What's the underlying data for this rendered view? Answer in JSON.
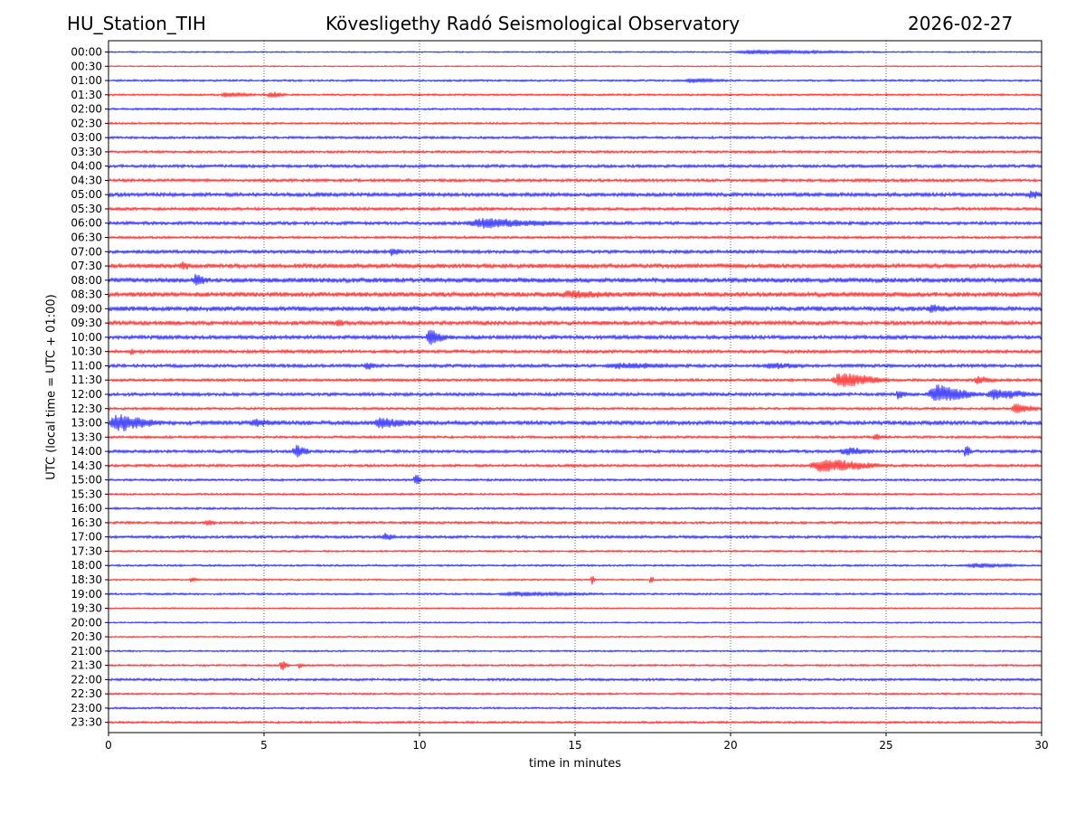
{
  "header": {
    "station": "HU_Station_TIH",
    "observatory": "Kövesligethy Radó Seismological Observatory",
    "date": "2026-02-27"
  },
  "chart_data": {
    "type": "line",
    "title": "Kövesligethy Radó Seismological Observatory",
    "xlabel": "time in minutes",
    "ylabel": "UTC (local time = UTC + 01:00)",
    "xlim": [
      0,
      30
    ],
    "x_ticks": [
      "0",
      "5",
      "10",
      "15",
      "20",
      "25",
      "30"
    ],
    "vertical_gridlines_at": [
      5,
      10,
      15,
      20,
      25
    ],
    "trace_colors": [
      "#0000ff",
      "#ff0000"
    ],
    "rows": [
      {
        "label": "00:00",
        "noise": 0.6,
        "events": [
          {
            "t": 20,
            "w": 5,
            "a": 2
          }
        ]
      },
      {
        "label": "00:30",
        "noise": 0.5,
        "events": []
      },
      {
        "label": "01:00",
        "noise": 0.8,
        "events": [
          {
            "t": 18.5,
            "w": 1.5,
            "a": 2
          }
        ]
      },
      {
        "label": "01:30",
        "noise": 0.8,
        "events": [
          {
            "t": 3.6,
            "w": 1.2,
            "a": 2.5
          },
          {
            "t": 5.1,
            "w": 0.7,
            "a": 3
          }
        ]
      },
      {
        "label": "02:00",
        "noise": 0.8,
        "events": []
      },
      {
        "label": "02:30",
        "noise": 0.8,
        "events": []
      },
      {
        "label": "03:00",
        "noise": 1.0,
        "events": []
      },
      {
        "label": "03:30",
        "noise": 1.0,
        "events": []
      },
      {
        "label": "04:00",
        "noise": 1.2,
        "events": []
      },
      {
        "label": "04:30",
        "noise": 1.2,
        "events": []
      },
      {
        "label": "05:00",
        "noise": 1.5,
        "events": [
          {
            "t": 29.5,
            "w": 0.8,
            "a": 3
          }
        ]
      },
      {
        "label": "05:30",
        "noise": 1.2,
        "events": []
      },
      {
        "label": "06:00",
        "noise": 1.3,
        "events": [
          {
            "t": 11.5,
            "w": 3.3,
            "a": 5
          }
        ]
      },
      {
        "label": "06:30",
        "noise": 1.0,
        "events": []
      },
      {
        "label": "07:00",
        "noise": 1.3,
        "events": [
          {
            "t": 9,
            "w": 0.6,
            "a": 3
          }
        ]
      },
      {
        "label": "07:30",
        "noise": 1.7,
        "events": [
          {
            "t": 2.3,
            "w": 0.5,
            "a": 3
          }
        ]
      },
      {
        "label": "08:00",
        "noise": 1.8,
        "events": [
          {
            "t": 2.7,
            "w": 0.6,
            "a": 5
          }
        ]
      },
      {
        "label": "08:30",
        "noise": 1.8,
        "events": [
          {
            "t": 14.5,
            "w": 2,
            "a": 3
          }
        ]
      },
      {
        "label": "09:00",
        "noise": 1.8,
        "events": [
          {
            "t": 26.3,
            "w": 0.8,
            "a": 3
          }
        ]
      },
      {
        "label": "09:30",
        "noise": 1.6,
        "events": [
          {
            "t": 7.3,
            "w": 0.3,
            "a": 4
          }
        ]
      },
      {
        "label": "10:00",
        "noise": 1.5,
        "events": [
          {
            "t": 10.2,
            "w": 0.7,
            "a": 10
          }
        ]
      },
      {
        "label": "10:30",
        "noise": 1.3,
        "events": [
          {
            "t": 0.7,
            "w": 0.2,
            "a": 3
          }
        ]
      },
      {
        "label": "11:00",
        "noise": 1.3,
        "events": [
          {
            "t": 8.2,
            "w": 0.5,
            "a": 4
          },
          {
            "t": 16,
            "w": 2.5,
            "a": 3
          },
          {
            "t": 21,
            "w": 1.5,
            "a": 3
          }
        ]
      },
      {
        "label": "11:30",
        "noise": 1.1,
        "events": [
          {
            "t": 23.2,
            "w": 2,
            "a": 8
          },
          {
            "t": 27.8,
            "w": 0.8,
            "a": 4
          }
        ]
      },
      {
        "label": "12:00",
        "noise": 1.3,
        "events": [
          {
            "t": 25.3,
            "w": 0.5,
            "a": 4
          },
          {
            "t": 26.3,
            "w": 1.8,
            "a": 10
          },
          {
            "t": 28.2,
            "w": 1.8,
            "a": 5
          }
        ]
      },
      {
        "label": "12:30",
        "noise": 1.0,
        "events": [
          {
            "t": 29.0,
            "w": 1,
            "a": 5
          }
        ]
      },
      {
        "label": "13:00",
        "noise": 1.6,
        "events": [
          {
            "t": 0,
            "w": 1.8,
            "a": 9
          },
          {
            "t": 4.5,
            "w": 1,
            "a": 3
          },
          {
            "t": 8.5,
            "w": 1.5,
            "a": 5
          }
        ]
      },
      {
        "label": "13:30",
        "noise": 1.0,
        "events": [
          {
            "t": 24.6,
            "w": 0.3,
            "a": 4
          }
        ]
      },
      {
        "label": "14:00",
        "noise": 1.2,
        "events": [
          {
            "t": 5.9,
            "w": 0.6,
            "a": 7
          },
          {
            "t": 23.5,
            "w": 1.2,
            "a": 4
          },
          {
            "t": 27.5,
            "w": 0.3,
            "a": 7
          }
        ]
      },
      {
        "label": "14:30",
        "noise": 1.1,
        "events": [
          {
            "t": 22.5,
            "w": 2.5,
            "a": 8
          }
        ]
      },
      {
        "label": "15:00",
        "noise": 0.9,
        "events": [
          {
            "t": 9.8,
            "w": 0.3,
            "a": 8
          }
        ]
      },
      {
        "label": "15:30",
        "noise": 0.8,
        "events": []
      },
      {
        "label": "16:00",
        "noise": 0.9,
        "events": []
      },
      {
        "label": "16:30",
        "noise": 1.0,
        "events": [
          {
            "t": 3.1,
            "w": 0.4,
            "a": 3
          }
        ]
      },
      {
        "label": "17:00",
        "noise": 1.1,
        "events": [
          {
            "t": 8.8,
            "w": 0.5,
            "a": 4
          }
        ]
      },
      {
        "label": "17:30",
        "noise": 0.8,
        "events": []
      },
      {
        "label": "18:00",
        "noise": 0.8,
        "events": [
          {
            "t": 27.5,
            "w": 2,
            "a": 2
          }
        ]
      },
      {
        "label": "18:30",
        "noise": 0.7,
        "events": [
          {
            "t": 2.6,
            "w": 0.3,
            "a": 2.5
          },
          {
            "t": 15.5,
            "w": 0.15,
            "a": 6
          },
          {
            "t": 17.4,
            "w": 0.15,
            "a": 5
          }
        ]
      },
      {
        "label": "19:00",
        "noise": 0.8,
        "events": [
          {
            "t": 12.5,
            "w": 3.5,
            "a": 2
          }
        ]
      },
      {
        "label": "19:30",
        "noise": 0.6,
        "events": []
      },
      {
        "label": "20:00",
        "noise": 0.6,
        "events": []
      },
      {
        "label": "20:30",
        "noise": 0.6,
        "events": []
      },
      {
        "label": "21:00",
        "noise": 0.7,
        "events": []
      },
      {
        "label": "21:30",
        "noise": 0.8,
        "events": [
          {
            "t": 5.5,
            "w": 0.35,
            "a": 6
          },
          {
            "t": 6.1,
            "w": 0.2,
            "a": 3
          }
        ]
      },
      {
        "label": "22:00",
        "noise": 1.0,
        "events": []
      },
      {
        "label": "22:30",
        "noise": 0.8,
        "events": []
      },
      {
        "label": "23:00",
        "noise": 0.8,
        "events": []
      },
      {
        "label": "23:30",
        "noise": 0.9,
        "events": []
      }
    ]
  }
}
